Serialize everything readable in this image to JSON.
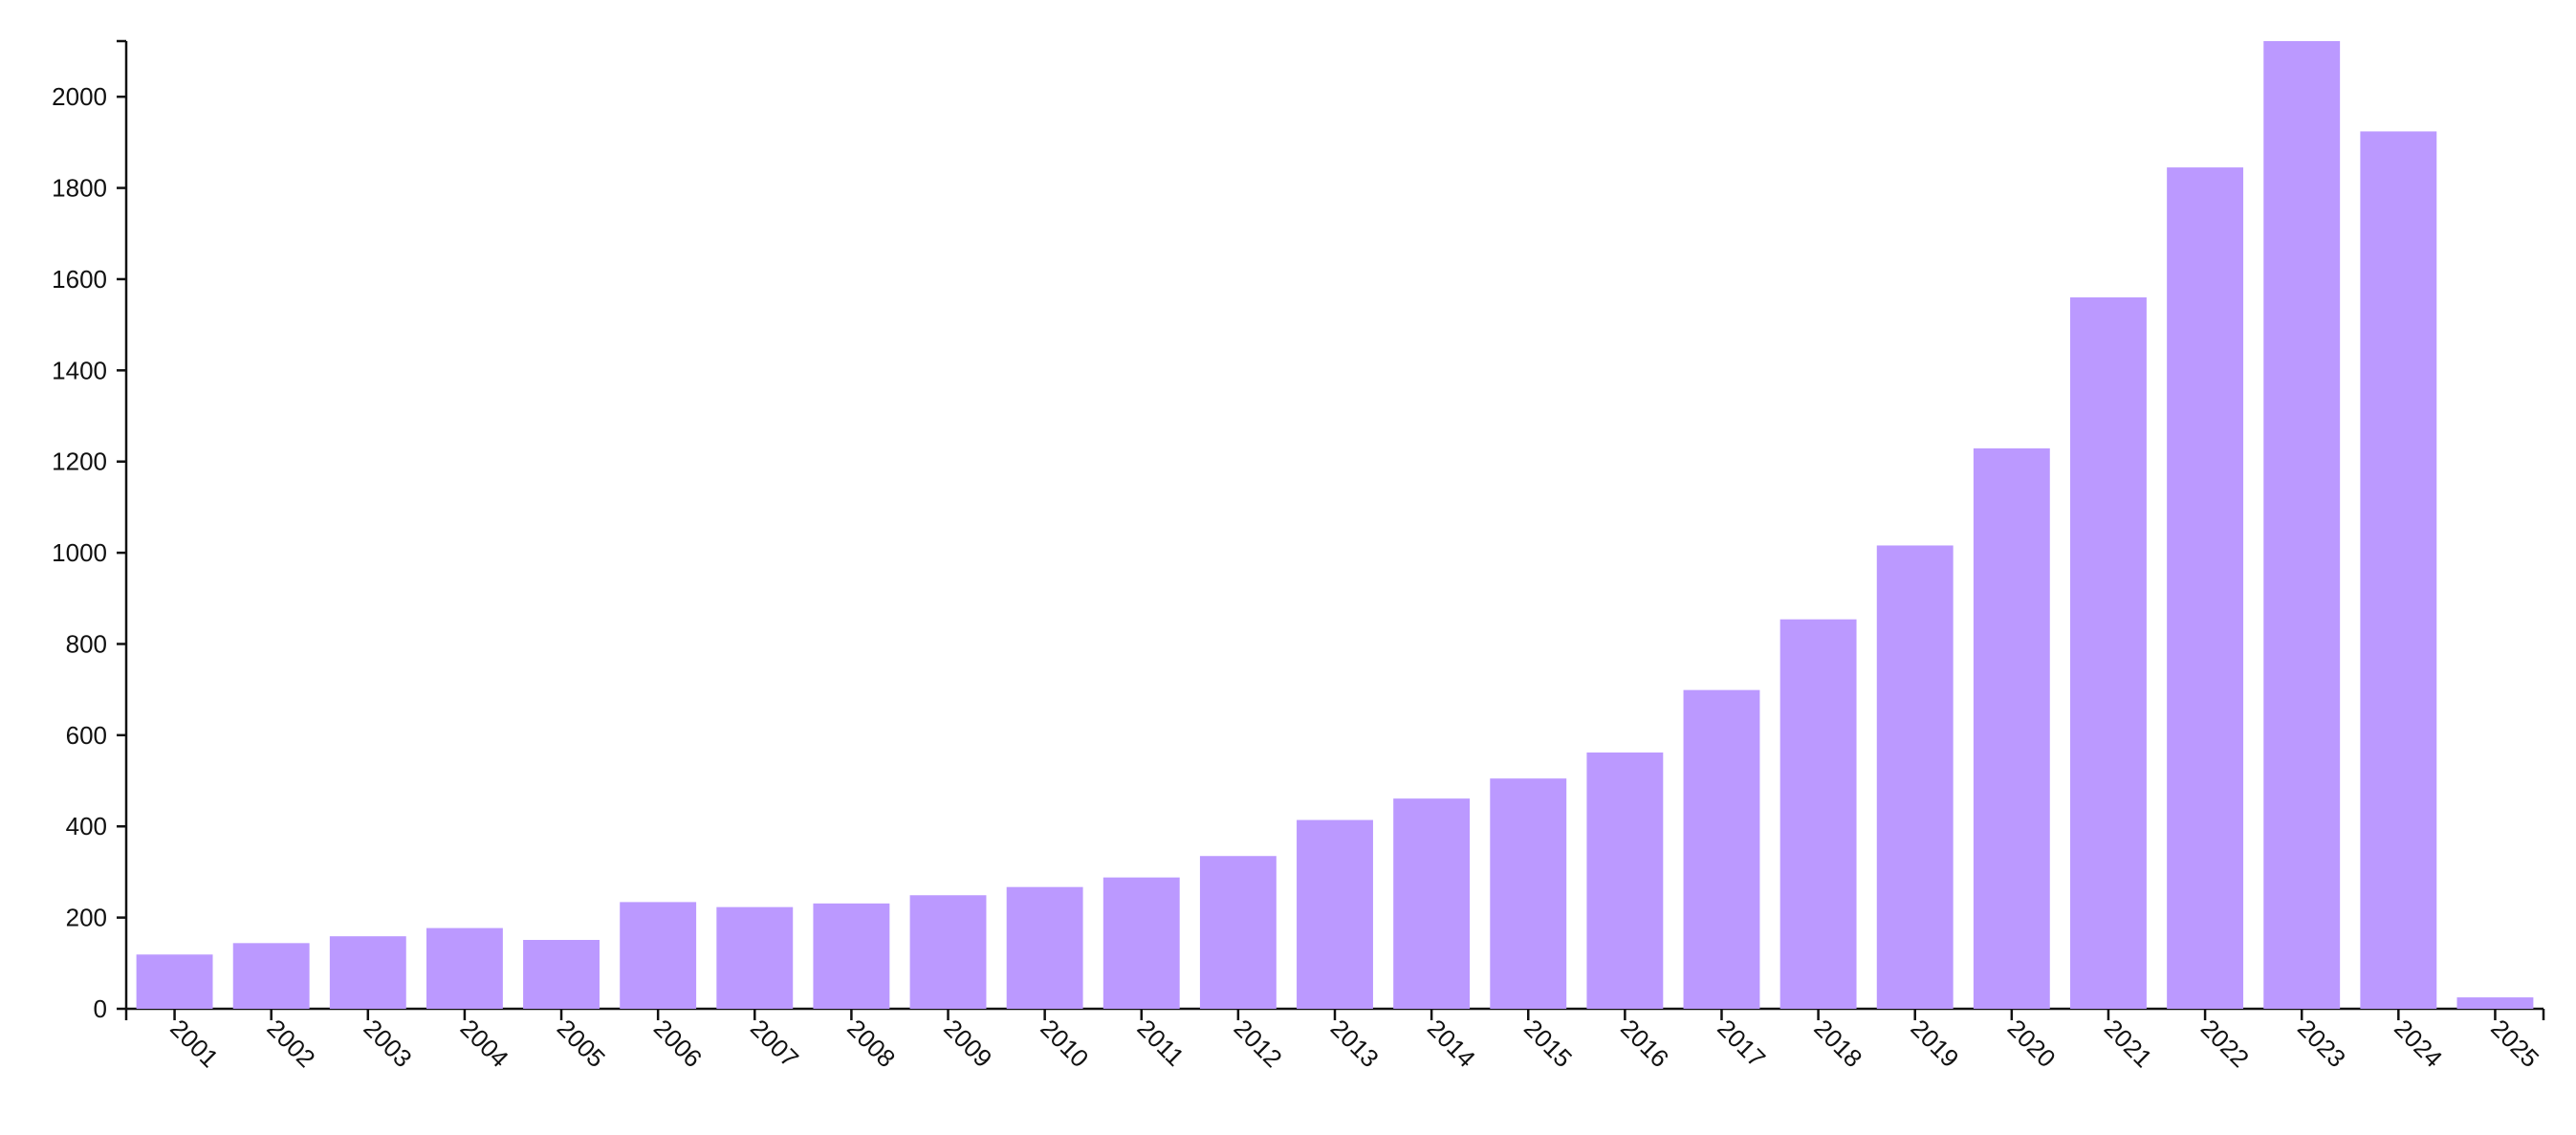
{
  "chart_data": {
    "type": "bar",
    "categories": [
      "2001",
      "2002",
      "2003",
      "2004",
      "2005",
      "2006",
      "2007",
      "2008",
      "2009",
      "2010",
      "2011",
      "2012",
      "2013",
      "2014",
      "2015",
      "2016",
      "2017",
      "2018",
      "2019",
      "2020",
      "2021",
      "2022",
      "2023",
      "2024",
      "2025"
    ],
    "values": [
      119,
      144,
      159,
      177,
      151,
      234,
      223,
      231,
      249,
      267,
      288,
      335,
      414,
      461,
      505,
      562,
      699,
      854,
      1016,
      1229,
      1560,
      1845,
      2122,
      1924,
      25
    ],
    "color": "#bb99ff",
    "ylim": [
      0,
      2122
    ],
    "yticks": [
      0,
      200,
      400,
      600,
      800,
      1000,
      1200,
      1400,
      1600,
      1800,
      2000
    ]
  }
}
